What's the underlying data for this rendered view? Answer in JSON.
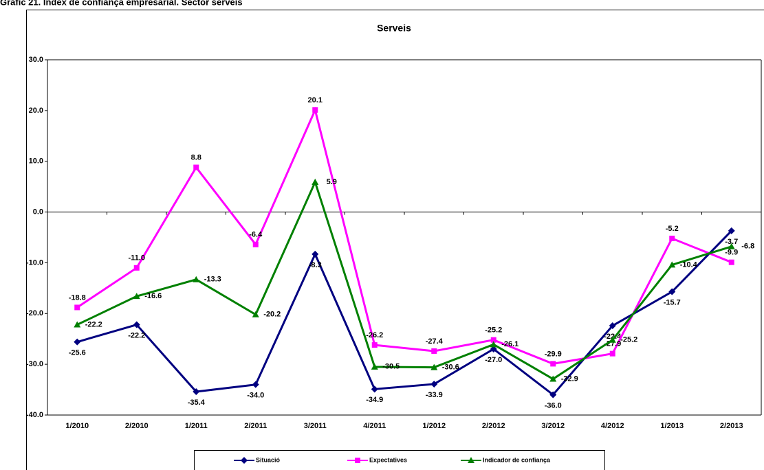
{
  "header": {
    "title": "Gràfic 21. Índex de confiança empresarial. Sector serveis"
  },
  "chart_data": {
    "type": "line",
    "title": "Serveis",
    "categories": [
      "1/2010",
      "2/2010",
      "1/2011",
      "2/2011",
      "3/2011",
      "4/2011",
      "1/2012",
      "2/2012",
      "3/2012",
      "4/2012",
      "1/2013",
      "2/2013"
    ],
    "ylim": [
      -40,
      30
    ],
    "yticks": [
      {
        "value": -40,
        "label": "-40.0"
      },
      {
        "value": -30,
        "label": "-30.0"
      },
      {
        "value": -20,
        "label": "-20.0"
      },
      {
        "value": -10,
        "label": "-10.0"
      },
      {
        "value": 0,
        "label": "0.0"
      },
      {
        "value": 10,
        "label": "10.0"
      },
      {
        "value": 20,
        "label": "20.0"
      },
      {
        "value": 30,
        "label": "30.0"
      }
    ],
    "legend": "bottom",
    "series": [
      {
        "name": "Situació",
        "color": "#000080",
        "marker": "diamond",
        "values": [
          -25.6,
          -22.2,
          -35.4,
          -34.0,
          -8.3,
          -34.9,
          -33.9,
          -27.0,
          -36.0,
          -22.4,
          -15.7,
          -3.7
        ],
        "value_labels": [
          "-25.6",
          "-22.2",
          "-35.4",
          "-34.0",
          "-8.3",
          "-34.9",
          "-33.9",
          "-27.0",
          "-36.0",
          "-22.4",
          "-15.7",
          "-3.7"
        ]
      },
      {
        "name": "Expectatives",
        "color": "#FF00FF",
        "marker": "square",
        "values": [
          -18.8,
          -11.0,
          8.8,
          -6.4,
          20.1,
          -26.2,
          -27.4,
          -25.2,
          -29.9,
          -27.9,
          -5.2,
          -9.9
        ],
        "value_labels": [
          "-18.8",
          "-11.0",
          "8.8",
          "-6.4",
          "20.1",
          "-26.2",
          "-27.4",
          "-25.2",
          "-29.9",
          "-27.9",
          "-5.2",
          "-9.9"
        ]
      },
      {
        "name": "Indicador de confiança",
        "color": "#008000",
        "marker": "triangle",
        "values": [
          -22.2,
          -16.6,
          -13.3,
          -20.2,
          5.9,
          -30.5,
          -30.6,
          -26.1,
          -32.9,
          -25.2,
          -10.4,
          -6.8
        ],
        "value_labels": [
          "-22.2",
          "-16.6",
          "-13.3",
          "-20.2",
          "5.9",
          "-30.5",
          "-30.6",
          "-26.1",
          "-32.9",
          "-25.2",
          "-10.4",
          "-6.8"
        ]
      }
    ]
  }
}
